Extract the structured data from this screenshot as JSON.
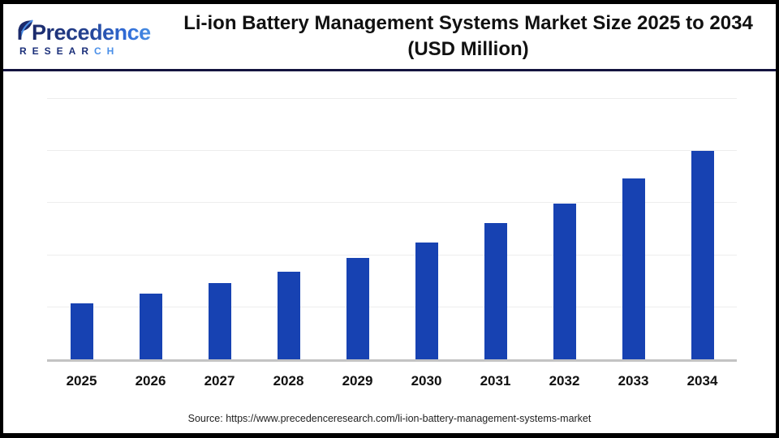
{
  "header": {
    "logo": {
      "brand_top": "Precedence",
      "research_part1": "RESEAR",
      "research_part2": "CH"
    },
    "title_line1": "Li-ion Battery Management Systems Market Size 2025 to 2034",
    "title_line2": "(USD Million)"
  },
  "footer": {
    "source_text": "Source: https://www.precedenceresearch.com/li-ion-battery-management-systems-market"
  },
  "colors": {
    "bar_blue": "#1742B2",
    "header_divider_navy": "#14143F",
    "logo_navy": "#1B2A6B",
    "logo_light_blue": "#4A8FE8",
    "gridline_gray": "#EDEDED",
    "axis_gray": "#C3C3C3"
  },
  "chart_data": {
    "type": "bar",
    "title": "Li-ion Battery Management Systems Market Size 2025 to 2034 (USD Million)",
    "categories": [
      "2025",
      "2026",
      "2027",
      "2028",
      "2029",
      "2030",
      "2031",
      "2032",
      "2033",
      "2034"
    ],
    "values_gridline_units": [
      1.08,
      1.26,
      1.46,
      1.69,
      1.94,
      2.24,
      2.61,
      2.99,
      3.47,
      4.01
    ],
    "values_relative_2034_eq_100": [
      27,
      31.5,
      36.5,
      42,
      48.5,
      56,
      65,
      74.5,
      86.5,
      100
    ],
    "ylim": [
      0,
      5
    ],
    "xlabel": "",
    "ylabel": "",
    "y_tick_labels_visible": false,
    "grid": "horizontal",
    "gridline_count": 5,
    "legend": "none",
    "bar_color": "#1742B2"
  }
}
